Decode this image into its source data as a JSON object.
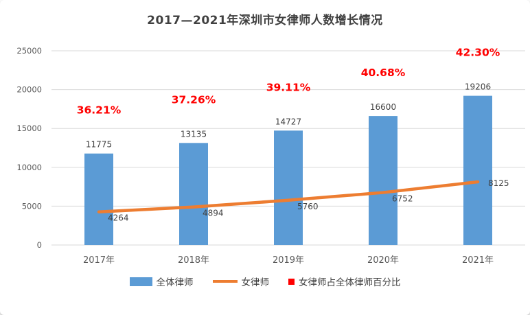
{
  "chart_data": {
    "type": "combo",
    "title": "2017—2021年深圳市女律师人数增长情况",
    "categories": [
      "2017年",
      "2018年",
      "2019年",
      "2020年",
      "2021年"
    ],
    "series": [
      {
        "name": "全体律师",
        "type": "bar",
        "color": "#5B9BD5",
        "values": [
          11775,
          13135,
          14727,
          16600,
          19206
        ]
      },
      {
        "name": "女律师",
        "type": "line",
        "color": "#ED7D31",
        "values": [
          4264,
          4894,
          5760,
          6752,
          8125
        ]
      },
      {
        "name": "女律师占全体律师百分比",
        "type": "percent-labels",
        "color": "#FF0000",
        "values": [
          "36.21%",
          "37.26%",
          "39.11%",
          "40.68%",
          "42.30%"
        ]
      }
    ],
    "y_axis": {
      "min": 0,
      "max": 25000,
      "step": 5000,
      "ticks": [
        0,
        5000,
        10000,
        15000,
        20000,
        25000
      ]
    },
    "grid": true,
    "legend_position": "bottom",
    "colors": {
      "grid": "#D9D9D9",
      "axis_text": "#595959",
      "title": "#404040",
      "value_label": "#404040",
      "percent_label": "#FF0000",
      "background": "#FFFFFF"
    }
  }
}
